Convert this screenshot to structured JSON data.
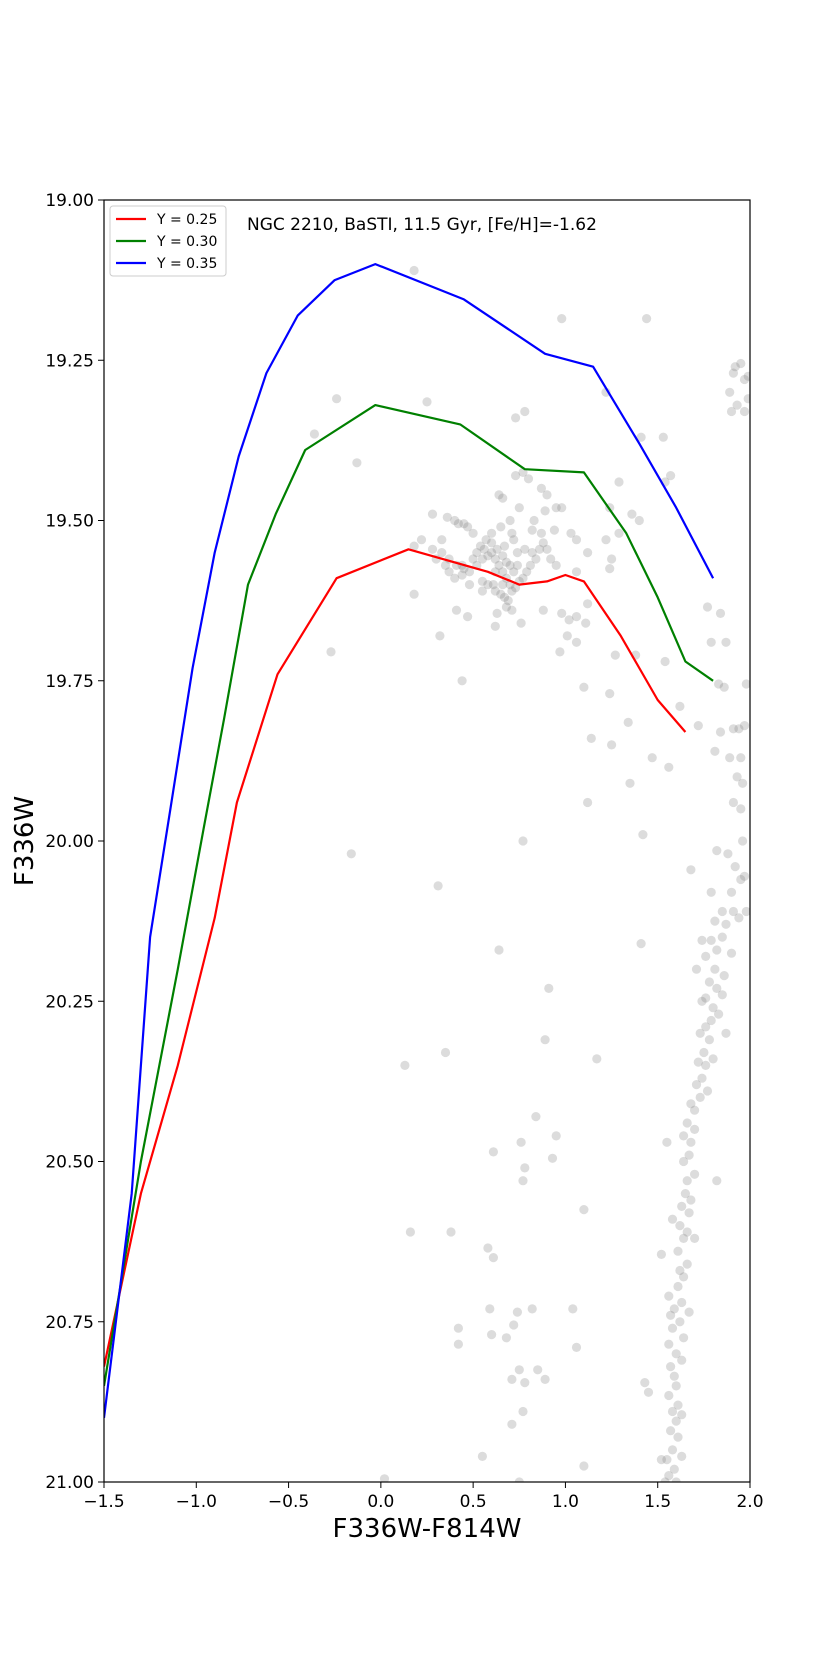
{
  "chart_data": {
    "type": "scatter",
    "title": "",
    "annotation": "NGC 2210, BaSTI, 11.5 Gyr, [Fe/H]=-1.62",
    "xlabel": "F336W-F814W",
    "ylabel": "F336W",
    "xlim": [
      -1.5,
      2.0
    ],
    "ylim": [
      21.0,
      19.0
    ],
    "y_inverted": true,
    "x_ticks": [
      -1.5,
      -1.0,
      -0.5,
      0.0,
      0.5,
      1.0,
      1.5,
      2.0
    ],
    "x_tick_labels": [
      "−1.5",
      "−1.0",
      "−0.5",
      "0.0",
      "0.5",
      "1.0",
      "1.5",
      "2.0"
    ],
    "y_ticks": [
      19.0,
      19.25,
      19.5,
      19.75,
      20.0,
      20.25,
      20.5,
      20.75,
      21.0
    ],
    "y_tick_labels": [
      "19.00",
      "19.25",
      "19.50",
      "19.75",
      "20.00",
      "20.25",
      "20.50",
      "20.75",
      "21.00"
    ],
    "grid": false,
    "legend_position": "top-left",
    "series": [
      {
        "name": "Y = 0.25",
        "color": "#ff0000",
        "x": [
          -1.5,
          -1.3,
          -1.1,
          -0.9,
          -0.78,
          -0.56,
          -0.24,
          0.15,
          0.58,
          0.75,
          0.9,
          1.0,
          1.1,
          1.3,
          1.5,
          1.65
        ],
        "y": [
          20.82,
          20.55,
          20.35,
          20.12,
          19.94,
          19.74,
          19.59,
          19.545,
          19.58,
          19.6,
          19.595,
          19.585,
          19.595,
          19.68,
          19.78,
          19.83
        ]
      },
      {
        "name": "Y = 0.30",
        "color": "#008000",
        "x": [
          -1.5,
          -1.3,
          -1.1,
          -0.96,
          -0.85,
          -0.72,
          -0.57,
          -0.41,
          -0.03,
          0.43,
          0.78,
          1.1,
          1.33,
          1.5,
          1.65,
          1.8
        ],
        "y": [
          20.85,
          20.5,
          20.2,
          19.98,
          19.81,
          19.6,
          19.49,
          19.39,
          19.32,
          19.35,
          19.42,
          19.425,
          19.52,
          19.62,
          19.72,
          19.75
        ]
      },
      {
        "name": "Y = 0.35",
        "color": "#0000ff",
        "x": [
          -1.5,
          -1.35,
          -1.25,
          -1.14,
          -1.02,
          -0.9,
          -0.77,
          -0.62,
          -0.45,
          -0.25,
          -0.03,
          0.45,
          0.89,
          1.15,
          1.4,
          1.6,
          1.8
        ],
        "y": [
          20.9,
          20.55,
          20.15,
          19.95,
          19.73,
          19.55,
          19.4,
          19.27,
          19.18,
          19.125,
          19.1,
          19.155,
          19.24,
          19.26,
          19.38,
          19.48,
          19.59
        ]
      }
    ],
    "stars_color": "#808080",
    "stars": [
      [
        0.18,
        19.11
      ],
      [
        0.98,
        19.185
      ],
      [
        1.44,
        19.185
      ],
      [
        1.92,
        19.26
      ],
      [
        1.95,
        19.255
      ],
      [
        1.97,
        19.28
      ],
      [
        1.91,
        19.27
      ],
      [
        1.99,
        19.275
      ],
      [
        1.89,
        19.3
      ],
      [
        1.93,
        19.32
      ],
      [
        1.99,
        19.31
      ],
      [
        1.9,
        19.33
      ],
      [
        1.97,
        19.33
      ],
      [
        1.22,
        19.3
      ],
      [
        0.25,
        19.315
      ],
      [
        -0.24,
        19.31
      ],
      [
        0.73,
        19.34
      ],
      [
        0.78,
        19.33
      ],
      [
        1.41,
        19.37
      ],
      [
        1.53,
        19.37
      ],
      [
        -0.36,
        19.365
      ],
      [
        -0.13,
        19.41
      ],
      [
        0.73,
        19.43
      ],
      [
        0.77,
        19.425
      ],
      [
        0.8,
        19.435
      ],
      [
        1.29,
        19.44
      ],
      [
        1.54,
        19.44
      ],
      [
        1.57,
        19.43
      ],
      [
        0.64,
        19.46
      ],
      [
        0.66,
        19.465
      ],
      [
        0.87,
        19.45
      ],
      [
        0.9,
        19.46
      ],
      [
        0.95,
        19.48
      ],
      [
        0.98,
        19.48
      ],
      [
        0.83,
        19.5
      ],
      [
        0.89,
        19.485
      ],
      [
        0.75,
        19.48
      ],
      [
        0.65,
        19.51
      ],
      [
        0.7,
        19.5
      ],
      [
        0.71,
        19.52
      ],
      [
        0.6,
        19.52
      ],
      [
        0.82,
        19.515
      ],
      [
        0.87,
        19.52
      ],
      [
        0.94,
        19.515
      ],
      [
        1.03,
        19.52
      ],
      [
        1.24,
        19.48
      ],
      [
        1.36,
        19.49
      ],
      [
        1.4,
        19.5
      ],
      [
        1.29,
        19.52
      ],
      [
        0.28,
        19.49
      ],
      [
        0.36,
        19.495
      ],
      [
        0.42,
        19.505
      ],
      [
        0.47,
        19.51
      ],
      [
        0.5,
        19.52
      ],
      [
        0.45,
        19.505
      ],
      [
        0.4,
        19.5
      ],
      [
        0.33,
        19.53
      ],
      [
        0.22,
        19.53
      ],
      [
        0.18,
        19.54
      ],
      [
        0.28,
        19.545
      ],
      [
        0.33,
        19.55
      ],
      [
        0.3,
        19.56
      ],
      [
        0.37,
        19.56
      ],
      [
        0.41,
        19.57
      ],
      [
        0.45,
        19.575
      ],
      [
        0.48,
        19.58
      ],
      [
        0.52,
        19.57
      ],
      [
        0.55,
        19.56
      ],
      [
        0.58,
        19.555
      ],
      [
        0.56,
        19.545
      ],
      [
        0.6,
        19.55
      ],
      [
        0.62,
        19.56
      ],
      [
        0.64,
        19.57
      ],
      [
        0.66,
        19.58
      ],
      [
        0.68,
        19.59
      ],
      [
        0.7,
        19.6
      ],
      [
        0.72,
        19.58
      ],
      [
        0.74,
        19.57
      ],
      [
        0.68,
        19.565
      ],
      [
        0.66,
        19.555
      ],
      [
        0.63,
        19.545
      ],
      [
        0.6,
        19.535
      ],
      [
        0.57,
        19.53
      ],
      [
        0.54,
        19.54
      ],
      [
        0.52,
        19.55
      ],
      [
        0.5,
        19.56
      ],
      [
        0.44,
        19.585
      ],
      [
        0.4,
        19.59
      ],
      [
        0.37,
        19.58
      ],
      [
        0.35,
        19.57
      ],
      [
        0.55,
        19.595
      ],
      [
        0.58,
        19.6
      ],
      [
        0.62,
        19.61
      ],
      [
        0.65,
        19.615
      ],
      [
        0.67,
        19.62
      ],
      [
        0.69,
        19.625
      ],
      [
        0.71,
        19.61
      ],
      [
        0.73,
        19.605
      ],
      [
        0.75,
        19.595
      ],
      [
        0.77,
        19.59
      ],
      [
        0.79,
        19.58
      ],
      [
        0.81,
        19.57
      ],
      [
        0.84,
        19.56
      ],
      [
        0.86,
        19.545
      ],
      [
        0.88,
        19.535
      ],
      [
        0.9,
        19.545
      ],
      [
        0.92,
        19.56
      ],
      [
        0.95,
        19.57
      ],
      [
        0.68,
        19.635
      ],
      [
        0.71,
        19.64
      ],
      [
        0.66,
        19.6
      ],
      [
        0.61,
        19.6
      ],
      [
        0.55,
        19.61
      ],
      [
        0.48,
        19.6
      ],
      [
        0.44,
        19.57
      ],
      [
        0.62,
        19.58
      ],
      [
        0.7,
        19.57
      ],
      [
        0.74,
        19.55
      ],
      [
        0.67,
        19.54
      ],
      [
        0.72,
        19.53
      ],
      [
        0.78,
        19.545
      ],
      [
        0.82,
        19.55
      ],
      [
        1.06,
        19.53
      ],
      [
        1.12,
        19.55
      ],
      [
        1.22,
        19.53
      ],
      [
        1.25,
        19.56
      ],
      [
        1.06,
        19.58
      ],
      [
        1.24,
        19.575
      ],
      [
        0.18,
        19.615
      ],
      [
        0.41,
        19.64
      ],
      [
        0.47,
        19.65
      ],
      [
        0.63,
        19.645
      ],
      [
        0.76,
        19.66
      ],
      [
        0.88,
        19.64
      ],
      [
        0.98,
        19.645
      ],
      [
        1.02,
        19.655
      ],
      [
        1.06,
        19.65
      ],
      [
        1.12,
        19.63
      ],
      [
        1.11,
        19.66
      ],
      [
        0.32,
        19.68
      ],
      [
        0.62,
        19.665
      ],
      [
        1.01,
        19.68
      ],
      [
        1.06,
        19.69
      ],
      [
        0.97,
        19.705
      ],
      [
        1.27,
        19.71
      ],
      [
        1.38,
        19.71
      ],
      [
        1.54,
        19.72
      ],
      [
        1.77,
        19.635
      ],
      [
        1.84,
        19.645
      ],
      [
        1.87,
        19.69
      ],
      [
        1.79,
        19.69
      ],
      [
        -0.27,
        19.705
      ],
      [
        1.1,
        19.76
      ],
      [
        1.24,
        19.77
      ],
      [
        1.62,
        19.79
      ],
      [
        1.72,
        19.82
      ],
      [
        1.83,
        19.755
      ],
      [
        1.86,
        19.76
      ],
      [
        1.98,
        19.755
      ],
      [
        0.44,
        19.75
      ],
      [
        1.14,
        19.84
      ],
      [
        1.34,
        19.815
      ],
      [
        1.84,
        19.83
      ],
      [
        1.91,
        19.825
      ],
      [
        1.94,
        19.825
      ],
      [
        1.97,
        19.82
      ],
      [
        1.25,
        19.85
      ],
      [
        1.47,
        19.87
      ],
      [
        1.56,
        19.885
      ],
      [
        1.81,
        19.86
      ],
      [
        1.89,
        19.87
      ],
      [
        1.95,
        19.87
      ],
      [
        1.35,
        19.91
      ],
      [
        1.93,
        19.9
      ],
      [
        1.96,
        19.91
      ],
      [
        1.12,
        19.94
      ],
      [
        1.91,
        19.94
      ],
      [
        1.95,
        19.95
      ],
      [
        1.42,
        19.99
      ],
      [
        0.77,
        20.0
      ],
      [
        1.82,
        20.015
      ],
      [
        1.96,
        20.0
      ],
      [
        1.88,
        20.02
      ],
      [
        -0.16,
        20.02
      ],
      [
        0.31,
        20.07
      ],
      [
        1.68,
        20.045
      ],
      [
        1.92,
        20.04
      ],
      [
        1.97,
        20.055
      ],
      [
        1.95,
        20.06
      ],
      [
        1.9,
        20.08
      ],
      [
        1.79,
        20.08
      ],
      [
        1.85,
        20.11
      ],
      [
        1.91,
        20.11
      ],
      [
        1.94,
        20.12
      ],
      [
        1.98,
        20.11
      ],
      [
        1.81,
        20.125
      ],
      [
        1.87,
        20.13
      ],
      [
        1.85,
        20.15
      ],
      [
        1.74,
        20.155
      ],
      [
        1.79,
        20.155
      ],
      [
        1.82,
        20.17
      ],
      [
        1.9,
        20.175
      ],
      [
        0.64,
        20.17
      ],
      [
        1.41,
        20.16
      ],
      [
        1.76,
        20.18
      ],
      [
        1.81,
        20.2
      ],
      [
        1.86,
        20.21
      ],
      [
        1.71,
        20.2
      ],
      [
        1.78,
        20.22
      ],
      [
        1.82,
        20.23
      ],
      [
        1.85,
        20.24
      ],
      [
        1.76,
        20.245
      ],
      [
        1.74,
        20.25
      ],
      [
        0.91,
        20.23
      ],
      [
        1.8,
        20.26
      ],
      [
        1.83,
        20.27
      ],
      [
        1.79,
        20.28
      ],
      [
        1.76,
        20.29
      ],
      [
        1.73,
        20.3
      ],
      [
        1.78,
        20.31
      ],
      [
        1.87,
        20.3
      ],
      [
        0.89,
        20.31
      ],
      [
        1.75,
        20.33
      ],
      [
        1.8,
        20.34
      ],
      [
        0.35,
        20.33
      ],
      [
        1.72,
        20.345
      ],
      [
        1.76,
        20.35
      ],
      [
        1.17,
        20.34
      ],
      [
        0.13,
        20.35
      ],
      [
        1.74,
        20.37
      ],
      [
        1.71,
        20.38
      ],
      [
        1.77,
        20.39
      ],
      [
        1.73,
        20.4
      ],
      [
        1.68,
        20.41
      ],
      [
        1.7,
        20.42
      ],
      [
        1.66,
        20.44
      ],
      [
        1.7,
        20.45
      ],
      [
        0.84,
        20.43
      ],
      [
        1.64,
        20.46
      ],
      [
        1.68,
        20.47
      ],
      [
        1.55,
        20.47
      ],
      [
        0.95,
        20.46
      ],
      [
        0.76,
        20.47
      ],
      [
        0.61,
        20.485
      ],
      [
        1.67,
        20.49
      ],
      [
        1.64,
        20.5
      ],
      [
        0.93,
        20.495
      ],
      [
        1.7,
        20.52
      ],
      [
        1.66,
        20.53
      ],
      [
        0.78,
        20.51
      ],
      [
        1.82,
        20.53
      ],
      [
        0.77,
        20.53
      ],
      [
        1.65,
        20.55
      ],
      [
        1.68,
        20.56
      ],
      [
        1.63,
        20.57
      ],
      [
        1.67,
        20.58
      ],
      [
        1.1,
        20.575
      ],
      [
        1.58,
        20.59
      ],
      [
        1.62,
        20.6
      ],
      [
        1.66,
        20.61
      ],
      [
        1.7,
        20.62
      ],
      [
        1.64,
        20.62
      ],
      [
        1.61,
        20.64
      ],
      [
        1.52,
        20.645
      ],
      [
        0.16,
        20.61
      ],
      [
        0.38,
        20.61
      ],
      [
        0.58,
        20.635
      ],
      [
        0.61,
        20.65
      ],
      [
        1.66,
        20.66
      ],
      [
        1.62,
        20.67
      ],
      [
        1.64,
        20.68
      ],
      [
        1.61,
        20.695
      ],
      [
        1.56,
        20.71
      ],
      [
        1.63,
        20.72
      ],
      [
        1.59,
        20.73
      ],
      [
        1.67,
        20.735
      ],
      [
        1.57,
        20.74
      ],
      [
        0.59,
        20.73
      ],
      [
        0.74,
        20.735
      ],
      [
        0.82,
        20.73
      ],
      [
        1.04,
        20.73
      ],
      [
        1.62,
        20.75
      ],
      [
        1.58,
        20.76
      ],
      [
        1.64,
        20.775
      ],
      [
        0.42,
        20.76
      ],
      [
        0.72,
        20.755
      ],
      [
        0.6,
        20.77
      ],
      [
        1.56,
        20.785
      ],
      [
        1.6,
        20.8
      ],
      [
        0.68,
        20.775
      ],
      [
        1.06,
        20.79
      ],
      [
        0.42,
        20.785
      ],
      [
        1.57,
        20.82
      ],
      [
        1.63,
        20.81
      ],
      [
        1.59,
        20.835
      ],
      [
        1.6,
        20.85
      ],
      [
        1.43,
        20.845
      ],
      [
        0.85,
        20.825
      ],
      [
        0.78,
        20.845
      ],
      [
        0.75,
        20.825
      ],
      [
        0.71,
        20.84
      ],
      [
        0.89,
        20.84
      ],
      [
        1.45,
        20.86
      ],
      [
        1.56,
        20.865
      ],
      [
        1.61,
        20.88
      ],
      [
        1.58,
        20.89
      ],
      [
        1.63,
        20.895
      ],
      [
        1.6,
        20.905
      ],
      [
        0.77,
        20.89
      ],
      [
        0.71,
        20.91
      ],
      [
        1.57,
        20.92
      ],
      [
        1.61,
        20.93
      ],
      [
        1.58,
        20.95
      ],
      [
        1.63,
        20.96
      ],
      [
        1.55,
        20.965
      ],
      [
        1.52,
        20.965
      ],
      [
        0.55,
        20.96
      ],
      [
        1.59,
        20.98
      ],
      [
        1.56,
        20.99
      ],
      [
        1.1,
        20.975
      ],
      [
        1.54,
        21.0
      ],
      [
        1.6,
        21.0
      ],
      [
        0.02,
        20.995
      ],
      [
        0.75,
        21.0
      ]
    ]
  }
}
